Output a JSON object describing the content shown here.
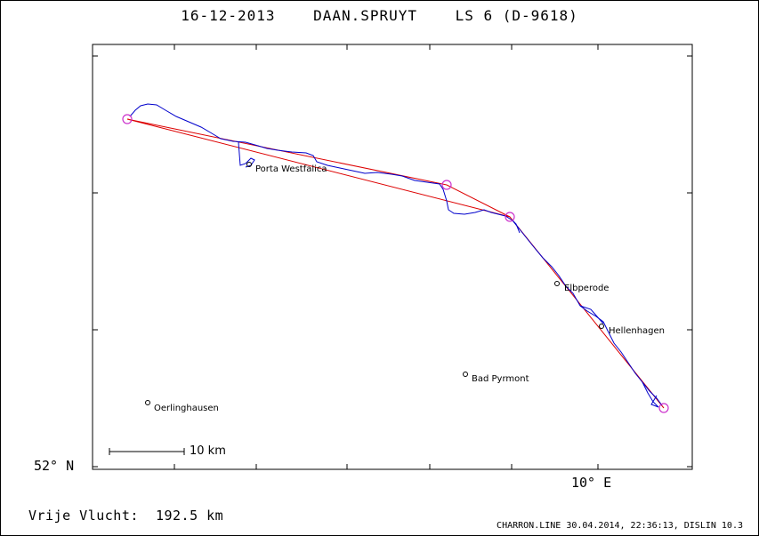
{
  "header": {
    "date": "16-12-2013",
    "pilot": "DAAN.SPRUYT",
    "glider": "LS 6 (D-9618)"
  },
  "axes": {
    "lat_label": "52° N",
    "lon_label": "10° E"
  },
  "scale_bar": {
    "label": "10 km"
  },
  "places": [
    {
      "name": "Porta Westfalica"
    },
    {
      "name": "Elbperode"
    },
    {
      "name": "Hellenhagen"
    },
    {
      "name": "Bad Pyrmont"
    },
    {
      "name": "Oerlinghausen"
    }
  ],
  "footer": {
    "distance_text": "Vrije Vlucht:  192.5 km",
    "credit": "CHARRON.LINE 30.04.2014, 22:36:13, DISLIN 10.3"
  },
  "colors": {
    "track": "#0000cc",
    "task_line": "#dd0000",
    "turnpoint": "#cc33cc"
  }
}
